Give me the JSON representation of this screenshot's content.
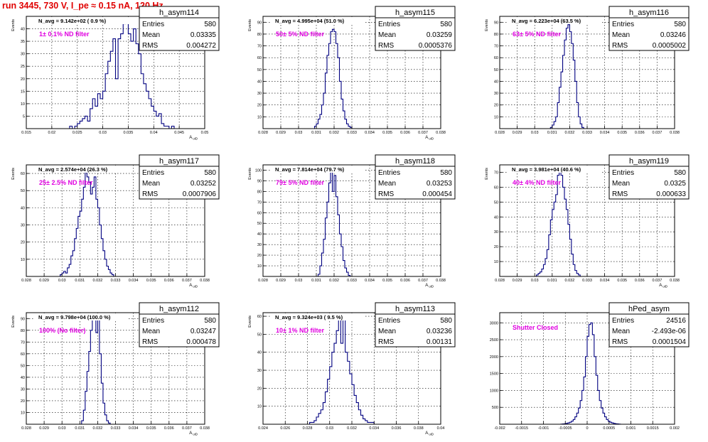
{
  "canvas": {
    "title": "run 3445,   730 V, I_pe ≈ 0.15 nA, 120 Hz",
    "title_color": "#e00000"
  },
  "style": {
    "line_color": "#000080",
    "annotation_color": "#e000e0",
    "frame_color": "#000000"
  },
  "chart_data": [
    {
      "type": "histogram",
      "name": "h_asym114",
      "stats": {
        "entries_label": "Entries",
        "entries": "580",
        "mean_label": "Mean",
        "mean": "0.03335",
        "rms_label": "RMS",
        "rms": "0.004272"
      },
      "navg": "N_avg = 9.142e+02 ( 0.9 %)",
      "annotation": "1± 0.1% ND filter",
      "xlabel": "A_uiD",
      "ylabel": "Events",
      "xlim": [
        0.015,
        0.05
      ],
      "ylim": [
        0,
        45
      ],
      "grid": true,
      "xticks": [
        0.015,
        0.02,
        0.025,
        0.03,
        0.035,
        0.04,
        0.045,
        0.05
      ],
      "xtick_labels": [
        "0.015",
        "0.02",
        "0.025",
        "0.03",
        "0.035",
        "0.04",
        "0.045",
        "0.05"
      ],
      "yticks": [
        5,
        10,
        15,
        20,
        25,
        30,
        35,
        40
      ],
      "ytick_labels": [
        "5",
        "10",
        "15",
        "20",
        "25",
        "30",
        "35",
        "40"
      ],
      "bins_start": 0.0235,
      "bin_width": 0.0005,
      "values": [
        1,
        0,
        1,
        2,
        3,
        4,
        5,
        3,
        8,
        12,
        9,
        14,
        12,
        15,
        22,
        27,
        31,
        36,
        20,
        36,
        38,
        42,
        43,
        38,
        35,
        40,
        34,
        30,
        22,
        18,
        15,
        12,
        9,
        7,
        5,
        6,
        2,
        1,
        1,
        0,
        1
      ]
    },
    {
      "type": "histogram",
      "name": "h_asym115",
      "stats": {
        "entries_label": "Entries",
        "entries": "580",
        "mean_label": "Mean",
        "mean": "0.03259",
        "rms_label": "RMS",
        "rms": "0.0005376"
      },
      "navg": "N_avg = 4.995e+04 (51.0 %)",
      "annotation": "50± 5% ND filter",
      "xlabel": "A_uiD",
      "ylabel": "Events",
      "xlim": [
        0.028,
        0.038
      ],
      "ylim": [
        0,
        95
      ],
      "grid": true,
      "xticks": [
        0.028,
        0.029,
        0.03,
        0.031,
        0.032,
        0.033,
        0.034,
        0.035,
        0.036,
        0.037,
        0.038
      ],
      "xtick_labels": [
        "0.028",
        "0.029",
        "0.03",
        "0.031",
        "0.032",
        "0.033",
        "0.034",
        "0.035",
        "0.036",
        "0.037",
        "0.038"
      ],
      "yticks": [
        10,
        20,
        30,
        40,
        50,
        60,
        70,
        80,
        90
      ],
      "ytick_labels": [
        "10",
        "20",
        "30",
        "40",
        "50",
        "60",
        "70",
        "80",
        "90"
      ],
      "bins_start": 0.0309,
      "bin_width": 0.0001,
      "values": [
        2,
        4,
        8,
        12,
        20,
        30,
        47,
        62,
        72,
        82,
        84,
        82,
        72,
        60,
        40,
        25,
        15,
        8,
        4,
        2,
        1
      ]
    },
    {
      "type": "histogram",
      "name": "h_asym116",
      "stats": {
        "entries_label": "Entries",
        "entries": "580",
        "mean_label": "Mean",
        "mean": "0.03246",
        "rms_label": "RMS",
        "rms": "0.0005002"
      },
      "navg": "N_avg = 6.223e+04 (63.5 %)",
      "annotation": "63± 5% ND filter",
      "xlabel": "",
      "ylabel": "Events",
      "xlim": [
        0.028,
        0.038
      ],
      "ylim": [
        0,
        95
      ],
      "grid": true,
      "xticks": [
        0.028,
        0.029,
        0.03,
        0.031,
        0.032,
        0.033,
        0.034,
        0.035,
        0.036,
        0.037,
        0.038
      ],
      "xtick_labels": [
        "0.028",
        "0.029",
        "0.03",
        "0.031",
        "0.032",
        "0.033",
        "0.034",
        "0.035",
        "0.036",
        "0.037",
        "0.038"
      ],
      "yticks": [
        10,
        20,
        30,
        40,
        50,
        60,
        70,
        80,
        90
      ],
      "ytick_labels": [
        "10",
        "20",
        "30",
        "40",
        "50",
        "60",
        "70",
        "80",
        "90"
      ],
      "bins_start": 0.0309,
      "bin_width": 0.0001,
      "values": [
        1,
        3,
        6,
        10,
        22,
        35,
        48,
        62,
        75,
        85,
        88,
        82,
        72,
        58,
        40,
        22,
        10,
        4,
        1
      ]
    },
    {
      "type": "histogram",
      "name": "h_asym117",
      "stats": {
        "entries_label": "Entries",
        "entries": "580",
        "mean_label": "Mean",
        "mean": "0.03252",
        "rms_label": "RMS",
        "rms": "0.0007906"
      },
      "navg": "N_avg = 2.574e+04 (26.3 %)",
      "annotation": "25± 2.5% ND filter",
      "xlabel": "A_uiD",
      "ylabel": "Events",
      "xlim": [
        0.028,
        0.038
      ],
      "ylim": [
        0,
        65
      ],
      "grid": true,
      "xticks": [
        0.028,
        0.029,
        0.03,
        0.031,
        0.032,
        0.033,
        0.034,
        0.035,
        0.036,
        0.037,
        0.038
      ],
      "xtick_labels": [
        "0.028",
        "0.029",
        "0.03",
        "0.031",
        "0.032",
        "0.033",
        "0.034",
        "0.035",
        "0.036",
        "0.037",
        "0.038"
      ],
      "yticks": [
        10,
        20,
        30,
        40,
        50,
        60
      ],
      "ytick_labels": [
        "10",
        "20",
        "30",
        "40",
        "50",
        "60"
      ],
      "bins_start": 0.0299,
      "bin_width": 0.0001,
      "values": [
        1,
        2,
        3,
        2,
        5,
        7,
        12,
        15,
        22,
        28,
        35,
        38,
        45,
        52,
        63,
        58,
        55,
        48,
        52,
        58,
        45,
        40,
        30,
        22,
        15,
        10,
        6,
        4,
        2,
        1
      ]
    },
    {
      "type": "histogram",
      "name": "h_asym118",
      "stats": {
        "entries_label": "Entries",
        "entries": "580",
        "mean_label": "Mean",
        "mean": "0.03253",
        "rms_label": "RMS",
        "rms": "0.000454"
      },
      "navg": "N_avg = 7.814e+04 (79.7 %)",
      "annotation": "79± 5% ND filter",
      "xlabel": "A_uiD",
      "ylabel": "Events",
      "xlim": [
        0.028,
        0.038
      ],
      "ylim": [
        0,
        105
      ],
      "grid": true,
      "xticks": [
        0.028,
        0.029,
        0.03,
        0.031,
        0.032,
        0.033,
        0.034,
        0.035,
        0.036,
        0.037,
        0.038
      ],
      "xtick_labels": [
        "0.028",
        "0.029",
        "0.03",
        "0.031",
        "0.032",
        "0.033",
        "0.034",
        "0.035",
        "0.036",
        "0.037",
        "0.038"
      ],
      "yticks": [
        10,
        20,
        30,
        40,
        50,
        60,
        70,
        80,
        90,
        100
      ],
      "ytick_labels": [
        "10",
        "20",
        "30",
        "40",
        "50",
        "60",
        "70",
        "80",
        "90",
        "100"
      ],
      "bins_start": 0.0311,
      "bin_width": 0.0001,
      "values": [
        2,
        10,
        22,
        35,
        55,
        70,
        88,
        98,
        80,
        95,
        75,
        58,
        40,
        28,
        15,
        8,
        4,
        1
      ]
    },
    {
      "type": "histogram",
      "name": "h_asym119",
      "stats": {
        "entries_label": "Entries",
        "entries": "580",
        "mean_label": "Mean",
        "mean": "0.0325",
        "rms_label": "RMS",
        "rms": "0.000633"
      },
      "navg": "N_avg = 3.981e+04 (40.6 %)",
      "annotation": "40± 4% ND filter",
      "xlabel": "A_uiD",
      "ylabel": "Events",
      "xlim": [
        0.028,
        0.038
      ],
      "ylim": [
        0,
        75
      ],
      "grid": true,
      "xticks": [
        0.028,
        0.029,
        0.03,
        0.031,
        0.032,
        0.033,
        0.034,
        0.035,
        0.036,
        0.037,
        0.038
      ],
      "xtick_labels": [
        "0.028",
        "0.029",
        "0.03",
        "0.031",
        "0.032",
        "0.033",
        "0.034",
        "0.035",
        "0.036",
        "0.037",
        "0.038"
      ],
      "yticks": [
        10,
        20,
        30,
        40,
        50,
        60,
        70
      ],
      "ytick_labels": [
        "10",
        "20",
        "30",
        "40",
        "50",
        "60",
        "70"
      ],
      "bins_start": 0.0301,
      "bin_width": 0.0001,
      "values": [
        1,
        2,
        3,
        5,
        8,
        12,
        18,
        28,
        38,
        45,
        50,
        55,
        68,
        72,
        68,
        60,
        52,
        45,
        35,
        25,
        15,
        8,
        4,
        2,
        1
      ]
    },
    {
      "type": "histogram",
      "name": "h_asym112",
      "stats": {
        "entries_label": "Entries",
        "entries": "580",
        "mean_label": "Mean",
        "mean": "0.03247",
        "rms_label": "RMS",
        "rms": "0.000478"
      },
      "navg": "N_avg = 9.798e+04 (100.0 %)",
      "annotation": "100% (No filter)",
      "xlabel": "A_uiD",
      "ylabel": "Events",
      "xlim": [
        0.028,
        0.038
      ],
      "ylim": [
        0,
        95
      ],
      "grid": true,
      "xticks": [
        0.028,
        0.029,
        0.03,
        0.031,
        0.032,
        0.033,
        0.034,
        0.035,
        0.036,
        0.037,
        0.038
      ],
      "xtick_labels": [
        "0.028",
        "0.029",
        "0.03",
        "0.031",
        "0.032",
        "0.033",
        "0.034",
        "0.035",
        "0.036",
        "0.037",
        "0.038"
      ],
      "yticks": [
        10,
        20,
        30,
        40,
        50,
        60,
        70,
        80,
        90
      ],
      "ytick_labels": [
        "10",
        "20",
        "30",
        "40",
        "50",
        "60",
        "70",
        "80",
        "90"
      ],
      "bins_start": 0.0311,
      "bin_width": 0.0001,
      "values": [
        3,
        12,
        28,
        45,
        62,
        80,
        92,
        90,
        78,
        92,
        60,
        35,
        18,
        8,
        3,
        1
      ]
    },
    {
      "type": "histogram",
      "name": "h_asym113",
      "stats": {
        "entries_label": "Entries",
        "entries": "580",
        "mean_label": "Mean",
        "mean": "0.03236",
        "rms_label": "RMS",
        "rms": "0.00131"
      },
      "navg": "N_avg = 9.324e+03 ( 9.5 %)",
      "annotation": "10± 1% ND filter",
      "xlabel": "A_uiD",
      "ylabel": "Events",
      "xlim": [
        0.024,
        0.04
      ],
      "ylim": [
        0,
        62
      ],
      "grid": true,
      "xticks": [
        0.024,
        0.026,
        0.028,
        0.03,
        0.032,
        0.034,
        0.036,
        0.038,
        0.04
      ],
      "xtick_labels": [
        "0.024",
        "0.026",
        "0.028",
        "0.03",
        "0.032",
        "0.034",
        "0.036",
        "0.038",
        "0.04"
      ],
      "yticks": [
        10,
        20,
        30,
        40,
        50,
        60
      ],
      "ytick_labels": [
        "10",
        "20",
        "30",
        "40",
        "50",
        "60"
      ],
      "bins_start": 0.0282,
      "bin_width": 0.0002,
      "values": [
        1,
        1,
        2,
        4,
        6,
        8,
        12,
        18,
        25,
        32,
        40,
        45,
        52,
        60,
        45,
        58,
        40,
        35,
        28,
        22,
        16,
        12,
        8,
        5,
        3,
        2,
        1,
        1,
        1
      ]
    },
    {
      "type": "histogram",
      "name": "hPed_asym",
      "stats": {
        "entries_label": "Entries",
        "entries": "24516",
        "mean_label": "Mean",
        "mean": "-2.493e-06",
        "rms_label": "RMS",
        "rms": "0.0001504"
      },
      "navg": "",
      "annotation": "Shutter Closed",
      "xlabel": "",
      "ylabel": "",
      "xlim": [
        -0.002,
        0.002
      ],
      "ylim": [
        0,
        3300
      ],
      "grid": true,
      "xticks": [
        -0.002,
        -0.0015,
        -0.001,
        -0.0005,
        0,
        0.0005,
        0.001,
        0.0015,
        0.002
      ],
      "xtick_labels": [
        "-0.002",
        "-0.0015",
        "-0.001",
        "-0.0005",
        "0",
        "0.0005",
        "0.001",
        "0.0015",
        "0.002"
      ],
      "yticks": [
        500,
        1000,
        1500,
        2000,
        2500,
        3000
      ],
      "ytick_labels": [
        "500",
        "1000",
        "1500",
        "2000",
        "2500",
        "3000"
      ],
      "bins_start": -0.0006,
      "bin_width": 4e-05,
      "values": [
        5,
        10,
        15,
        25,
        40,
        60,
        90,
        140,
        220,
        330,
        480,
        700,
        1000,
        1400,
        2000,
        2600,
        2950,
        3000,
        2650,
        2000,
        1450,
        1000,
        700,
        480,
        330,
        220,
        140,
        90,
        60,
        40,
        25,
        15,
        10,
        5
      ]
    }
  ]
}
